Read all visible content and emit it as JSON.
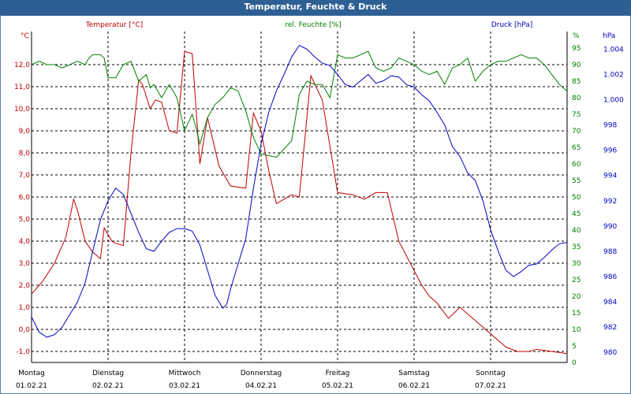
{
  "window": {
    "title": "Temperatur, Feuchte & Druck"
  },
  "colors": {
    "temperature": "#c00000",
    "humidity": "#008000",
    "pressure": "#0000c0",
    "titlebar": "#2e5f94"
  },
  "chart_data": {
    "type": "line",
    "title": "Temperatur, Feuchte & Druck",
    "x_range": [
      0,
      7
    ],
    "x_ticks": [
      {
        "day": "Montag",
        "date": "01.02.21"
      },
      {
        "day": "Dienstag",
        "date": "02.02.21"
      },
      {
        "day": "Mittwoch",
        "date": "03.02.21"
      },
      {
        "day": "Donnerstag",
        "date": "04.02.21"
      },
      {
        "day": "Freitag",
        "date": "05.02.21"
      },
      {
        "day": "Samstag",
        "date": "06.02.21"
      },
      {
        "day": "Sonntag",
        "date": "07.02.21"
      }
    ],
    "axes": {
      "temperature": {
        "label": "Temperatur [°C]",
        "unit": "°C",
        "range": [
          -1.5,
          13.5
        ],
        "ticks": [
          "12,0",
          "11,0",
          "10,0",
          "9,0",
          "8,0",
          "7,0",
          "6,0",
          "5,0",
          "4,0",
          "3,0",
          "2,0",
          "1,0",
          "0,0",
          "-1,0"
        ]
      },
      "humidity": {
        "label": "rel. Feuchte [%]",
        "unit": "%",
        "range": [
          0,
          100
        ],
        "ticks": [
          "95",
          "90",
          "85",
          "80",
          "75",
          "70",
          "65",
          "60",
          "55",
          "50",
          "45",
          "40",
          "35",
          "30",
          "25",
          "20",
          "15",
          "10",
          "5",
          "0"
        ]
      },
      "pressure": {
        "label": "Druck [hPa]",
        "unit": "hPa",
        "range": [
          979.2,
          1005.4
        ],
        "ticks": [
          "1.004",
          "1.002",
          "1.000",
          "998",
          "996",
          "994",
          "992",
          "990",
          "988",
          "986",
          "984",
          "982",
          "980"
        ]
      }
    },
    "series": [
      {
        "name": "Temperatur",
        "axis": "temperature",
        "x": [
          0,
          0.15,
          0.3,
          0.45,
          0.55,
          0.6,
          0.7,
          0.8,
          0.9,
          0.95,
          1.05,
          1.1,
          1.2,
          1.3,
          1.4,
          1.45,
          1.55,
          1.62,
          1.7,
          1.8,
          1.9,
          2.0,
          2.1,
          2.2,
          2.3,
          2.45,
          2.6,
          2.8,
          2.9,
          3.0,
          3.1,
          3.2,
          3.3,
          3.4,
          3.5,
          3.65,
          3.8,
          4.0,
          4.2,
          4.35,
          4.5,
          4.65,
          4.8,
          4.95,
          5.1,
          5.2,
          5.3,
          5.45,
          5.6,
          5.8,
          6.0,
          6.2,
          6.35,
          6.5,
          6.6,
          6.8,
          7.0
        ],
        "values": [
          1.6,
          2.2,
          3.0,
          4.2,
          5.9,
          5.4,
          4.0,
          3.5,
          3.2,
          4.6,
          4.0,
          3.9,
          3.8,
          8.0,
          11.3,
          11.1,
          10.0,
          10.4,
          10.3,
          9.0,
          8.9,
          12.6,
          12.5,
          7.5,
          9.6,
          7.4,
          6.5,
          6.4,
          9.8,
          9.0,
          7.2,
          5.7,
          5.9,
          6.1,
          6.0,
          11.5,
          10.4,
          6.2,
          6.1,
          5.9,
          6.2,
          6.2,
          4.0,
          3.0,
          2.0,
          1.5,
          1.2,
          0.5,
          1.0,
          0.4,
          -0.2,
          -0.8,
          -1.0,
          -1.0,
          -0.9,
          -1.0,
          -1.1
        ]
      },
      {
        "name": "rel. Feuchte",
        "axis": "humidity",
        "x": [
          0,
          0.1,
          0.2,
          0.3,
          0.4,
          0.5,
          0.6,
          0.7,
          0.75,
          0.8,
          0.85,
          0.9,
          0.95,
          1.0,
          1.1,
          1.2,
          1.3,
          1.4,
          1.5,
          1.55,
          1.6,
          1.7,
          1.8,
          1.9,
          2.0,
          2.1,
          2.15,
          2.2,
          2.3,
          2.4,
          2.5,
          2.6,
          2.7,
          2.8,
          2.9,
          3.0,
          3.2,
          3.4,
          3.5,
          3.6,
          3.7,
          3.8,
          3.9,
          4.0,
          4.1,
          4.2,
          4.3,
          4.4,
          4.5,
          4.6,
          4.7,
          4.8,
          4.9,
          5.0,
          5.1,
          5.2,
          5.3,
          5.4,
          5.5,
          5.6,
          5.7,
          5.8,
          5.9,
          6.0,
          6.1,
          6.2,
          6.3,
          6.4,
          6.5,
          6.6,
          6.7,
          6.8,
          6.9,
          7.0
        ],
        "values": [
          90,
          91,
          90,
          90,
          89,
          90,
          91,
          90,
          92,
          93,
          93,
          93,
          92,
          86,
          86,
          90,
          91,
          85,
          87,
          83,
          84,
          80,
          84,
          80,
          70,
          75,
          71,
          66,
          74,
          78,
          80,
          83,
          82,
          76,
          68,
          63,
          62,
          67,
          81,
          85,
          84,
          84,
          80,
          93,
          92,
          92,
          93,
          94,
          89,
          88,
          89,
          92,
          91,
          90,
          88,
          87,
          88,
          84,
          89,
          90,
          92,
          85,
          88,
          90,
          91,
          91,
          92,
          93,
          92,
          92,
          90,
          87,
          84,
          82
        ]
      },
      {
        "name": "Druck",
        "axis": "pressure",
        "x": [
          0,
          0.1,
          0.2,
          0.3,
          0.4,
          0.5,
          0.6,
          0.7,
          0.8,
          0.9,
          1.0,
          1.1,
          1.2,
          1.3,
          1.4,
          1.5,
          1.6,
          1.7,
          1.8,
          1.9,
          2.0,
          2.1,
          2.2,
          2.3,
          2.4,
          2.5,
          2.55,
          2.6,
          2.7,
          2.8,
          2.9,
          3.0,
          3.1,
          3.2,
          3.3,
          3.4,
          3.5,
          3.6,
          3.7,
          3.8,
          3.9,
          4.0,
          4.1,
          4.2,
          4.3,
          4.4,
          4.5,
          4.6,
          4.7,
          4.8,
          4.9,
          5.0,
          5.1,
          5.2,
          5.3,
          5.4,
          5.5,
          5.6,
          5.7,
          5.8,
          5.9,
          6.0,
          6.1,
          6.2,
          6.3,
          6.4,
          6.5,
          6.6,
          6.7,
          6.8,
          6.9,
          7.0
        ],
        "values": [
          982.8,
          981.6,
          981.2,
          981.4,
          982.0,
          983.0,
          984.0,
          985.5,
          988.0,
          990.5,
          992.0,
          993.0,
          992.5,
          991.0,
          989.5,
          988.2,
          988.0,
          988.8,
          989.5,
          989.8,
          989.8,
          989.6,
          988.5,
          986.5,
          984.5,
          983.5,
          983.8,
          985.0,
          987.0,
          989.0,
          993.0,
          996.5,
          999.0,
          1000.7,
          1002.0,
          1003.4,
          1004.3,
          1004.0,
          1003.4,
          1002.9,
          1002.7,
          1002.0,
          1001.2,
          1001.0,
          1001.5,
          1002.0,
          1001.3,
          1001.5,
          1001.9,
          1001.8,
          1001.2,
          1001.0,
          1000.4,
          999.9,
          999.0,
          998.0,
          996.3,
          995.5,
          994.2,
          993.6,
          992.0,
          989.7,
          988.0,
          986.5,
          986.0,
          986.4,
          986.9,
          987.0,
          987.5,
          988.1,
          988.6,
          988.7
        ]
      }
    ]
  }
}
